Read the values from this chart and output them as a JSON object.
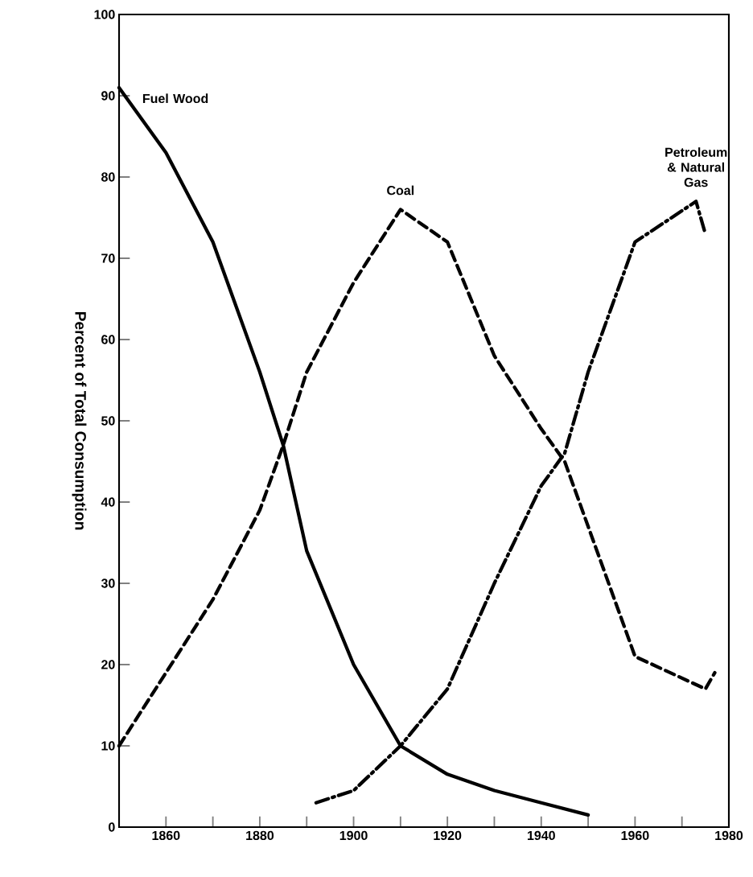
{
  "chart_data": {
    "type": "line",
    "ylabel": "Percent of Total Consumption",
    "xlim": [
      1850,
      1980
    ],
    "ylim": [
      0,
      100
    ],
    "xticks": [
      1860,
      {
        "value": 1870,
        "label": null
      },
      1880,
      {
        "value": 1890,
        "label": null
      },
      1900,
      {
        "value": 1910,
        "label": null
      },
      1920,
      {
        "value": 1930,
        "label": null
      },
      1940,
      {
        "value": 1950,
        "label": null
      },
      1960,
      {
        "value": 1970,
        "label": null
      },
      1980
    ],
    "yticks": [
      0,
      10,
      20,
      30,
      40,
      50,
      60,
      70,
      80,
      90,
      100
    ],
    "grid": false,
    "marker": "none",
    "series": [
      {
        "name": "Fuel Wood",
        "color": "#000000",
        "line_style": "solid",
        "x": [
          1850,
          1860,
          1870,
          1880,
          1885,
          1890,
          1900,
          1910,
          1920,
          1930,
          1940,
          1950
        ],
        "values": [
          91,
          83,
          72,
          56,
          47,
          34,
          20,
          10,
          6.5,
          4.5,
          3,
          1.5
        ]
      },
      {
        "name": "Coal",
        "color": "#000000",
        "line_style": "dashed",
        "x": [
          1850,
          1860,
          1870,
          1880,
          1885,
          1890,
          1900,
          1910,
          1920,
          1930,
          1940,
          1945,
          1950,
          1960,
          1975,
          1977
        ],
        "values": [
          10,
          19,
          28,
          39,
          47,
          56,
          67,
          76,
          72,
          58,
          49,
          45,
          37,
          21,
          17,
          19
        ]
      },
      {
        "name": "Petroleum & Natural Gas",
        "color": "#000000",
        "line_style": "dashdot",
        "x": [
          1892,
          1900,
          1910,
          1920,
          1930,
          1940,
          1945,
          1950,
          1960,
          1973,
          1975
        ],
        "values": [
          3,
          4.5,
          10,
          17,
          30,
          42,
          46,
          56,
          72,
          77,
          73
        ]
      }
    ]
  }
}
